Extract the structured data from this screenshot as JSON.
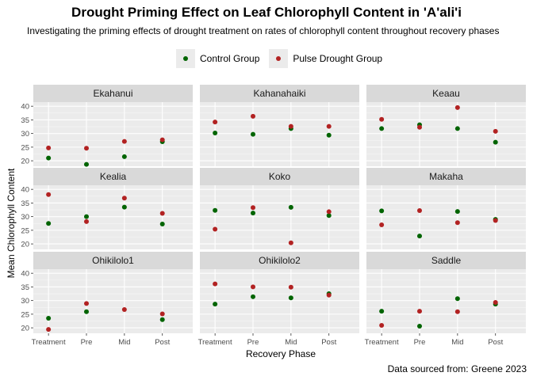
{
  "chart_data": {
    "type": "scatter",
    "title": "Drought Priming Effect on Leaf Chlorophyll Content in 'A'ali'i",
    "subtitle": "Investigating the priming effects of drought treatment on rates of chlorophyll content throughout recovery phases",
    "xlabel": "Recovery Phase",
    "ylabel": "Mean Chlorophyll Content",
    "caption": "Data sourced from: Greene 2023",
    "categories": [
      "Treatment",
      "Pre",
      "Mid",
      "Post"
    ],
    "y_ticks": [
      20,
      25,
      30,
      35,
      40
    ],
    "ylim": [
      18,
      41.5
    ],
    "grid": true,
    "legend_position": "top",
    "series": [
      {
        "name": "Control Group",
        "color": "#006400"
      },
      {
        "name": "Pulse Drought Group",
        "color": "#b22222"
      }
    ],
    "facets": [
      {
        "name": "Ekahanui",
        "values": [
          [
            21.0,
            24.7
          ],
          [
            18.7,
            24.6
          ],
          [
            21.5,
            27.1
          ],
          [
            27.0,
            27.7
          ]
        ]
      },
      {
        "name": "Kahanahaiki",
        "values": [
          [
            30.2,
            34.2
          ],
          [
            29.7,
            36.3
          ],
          [
            31.8,
            32.6
          ],
          [
            29.4,
            32.6
          ]
        ]
      },
      {
        "name": "Keaau",
        "values": [
          [
            31.8,
            35.2
          ],
          [
            33.2,
            32.3
          ],
          [
            31.8,
            39.5
          ],
          [
            26.8,
            30.8
          ]
        ]
      },
      {
        "name": "Kealia",
        "values": [
          [
            27.5,
            38.1
          ],
          [
            30.0,
            28.2
          ],
          [
            33.5,
            36.8
          ],
          [
            27.3,
            31.2
          ]
        ]
      },
      {
        "name": "Koko",
        "values": [
          [
            32.3,
            25.4
          ],
          [
            31.3,
            33.3
          ],
          [
            33.4,
            20.4
          ],
          [
            30.4,
            31.8
          ]
        ]
      },
      {
        "name": "Makaha",
        "values": [
          [
            32.1,
            27.0
          ],
          [
            22.9,
            32.2
          ],
          [
            31.9,
            27.8
          ],
          [
            29.0,
            28.6
          ]
        ]
      },
      {
        "name": "Ohikilolo1",
        "values": [
          [
            23.5,
            19.4
          ],
          [
            25.9,
            28.9
          ],
          [
            null,
            26.7
          ],
          [
            23.0,
            25.1
          ]
        ]
      },
      {
        "name": "Ohikilolo2",
        "values": [
          [
            28.7,
            36.1
          ],
          [
            31.4,
            35.0
          ],
          [
            31.0,
            34.9
          ],
          [
            32.5,
            32.0
          ]
        ]
      },
      {
        "name": "Saddle",
        "values": [
          [
            26.1,
            20.9
          ],
          [
            20.6,
            26.1
          ],
          [
            30.7,
            25.9
          ],
          [
            28.7,
            29.3
          ]
        ]
      }
    ]
  }
}
